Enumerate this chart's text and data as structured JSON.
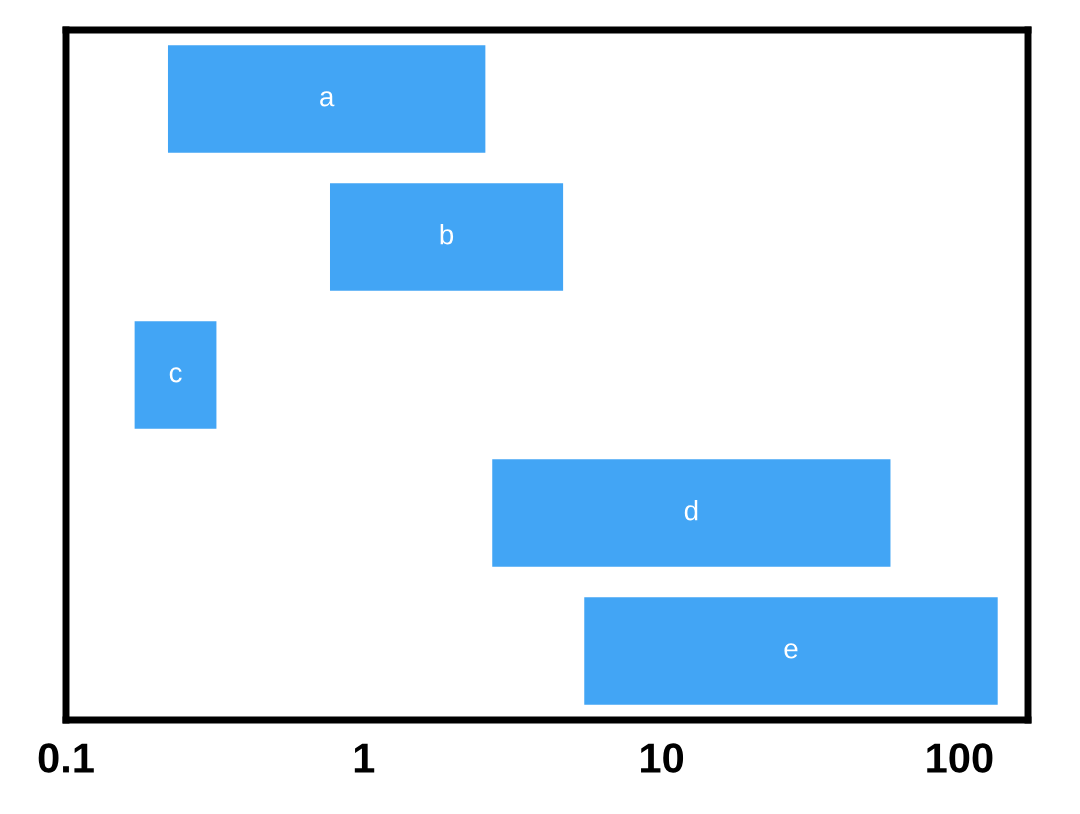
{
  "chart_data": {
    "type": "bar",
    "orientation": "horizontal",
    "log": "x",
    "categories": [
      "a",
      "b",
      "c",
      "d",
      "e"
    ],
    "base": [
      0.22,
      0.77,
      0.17,
      2.7,
      5.5
    ],
    "values": [
      2.34,
      3.9,
      0.15,
      56,
      129
    ],
    "color": "#42a5f5",
    "xlim": [
      0.1,
      170
    ],
    "xticks": [
      0.1,
      1,
      10,
      100
    ],
    "tick_labels": "x",
    "grid": false,
    "legend": false
  }
}
